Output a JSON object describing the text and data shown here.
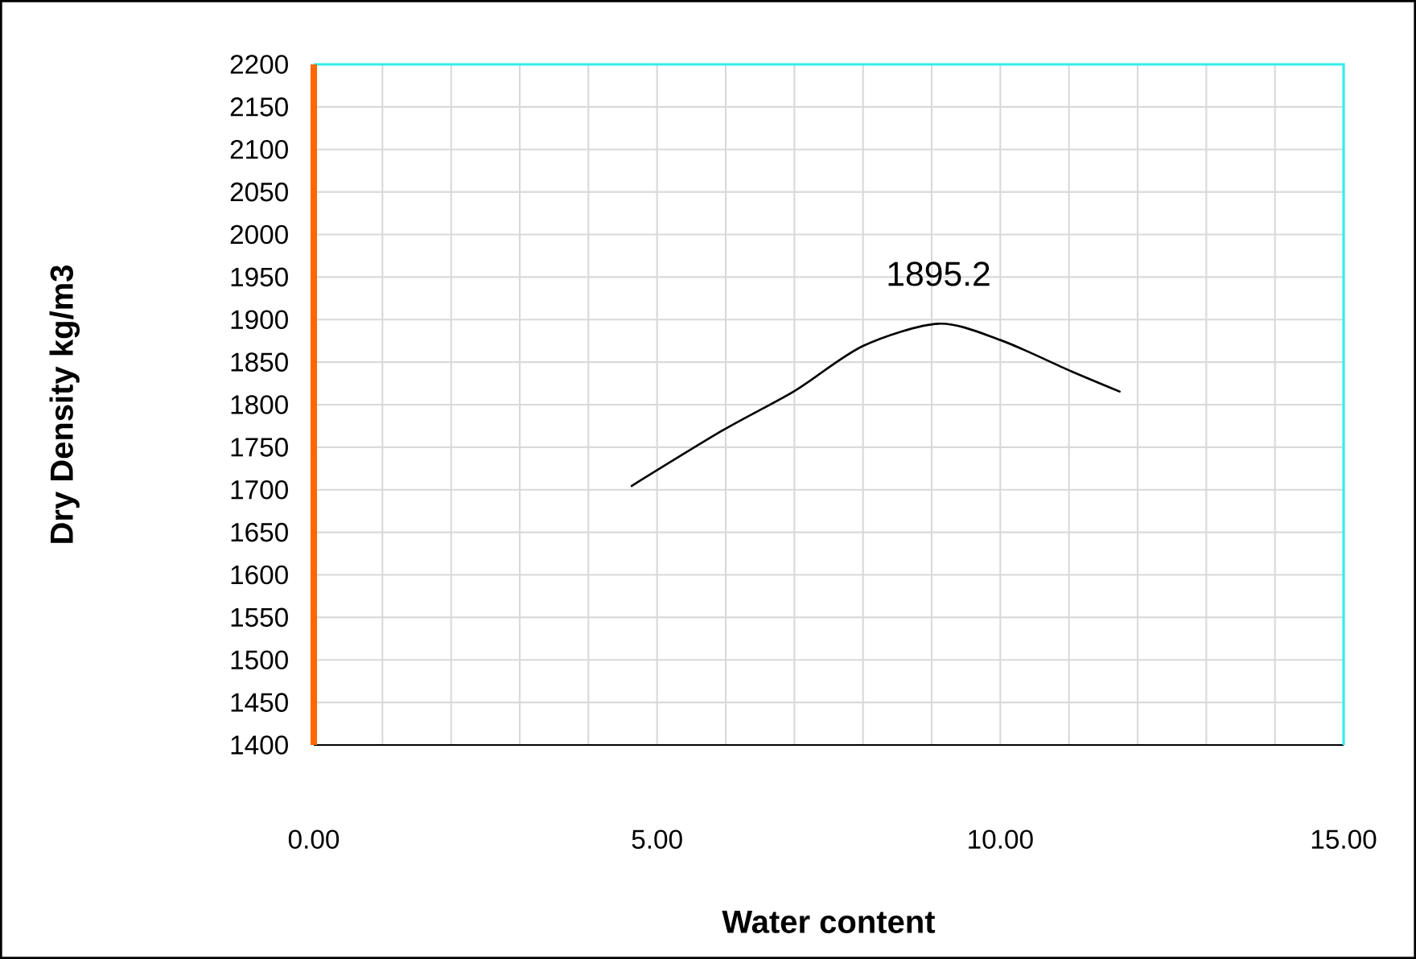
{
  "chart_data": {
    "type": "line",
    "xlabel": "Water content",
    "ylabel": "Dry Density kg/m3",
    "x": [
      4.62,
      5.96,
      7.0,
      8.0,
      9.1,
      10.0,
      11.04,
      11.75
    ],
    "series": [
      {
        "color": "#000000",
        "values": [
          1704,
          1770,
          1816,
          1869,
          1895.2,
          1876,
          1839,
          1815
        ]
      }
    ],
    "xlim": [
      0,
      15
    ],
    "ylim": [
      1400,
      2200
    ],
    "xticks": [
      {
        "value": 0,
        "label": "0.00"
      },
      {
        "value": 5,
        "label": "5.00"
      },
      {
        "value": 10,
        "label": "10.00"
      },
      {
        "value": 15,
        "label": "15.00"
      }
    ],
    "yticks": [
      1400,
      1450,
      1500,
      1550,
      1600,
      1650,
      1700,
      1750,
      1800,
      1850,
      1900,
      1950,
      2000,
      2050,
      2100,
      2150,
      2200
    ],
    "annotations": [
      {
        "text": "1895.2",
        "x": 9.1,
        "y": 1895.2
      }
    ],
    "grid": true,
    "marker": "none",
    "line_style": "solid"
  }
}
